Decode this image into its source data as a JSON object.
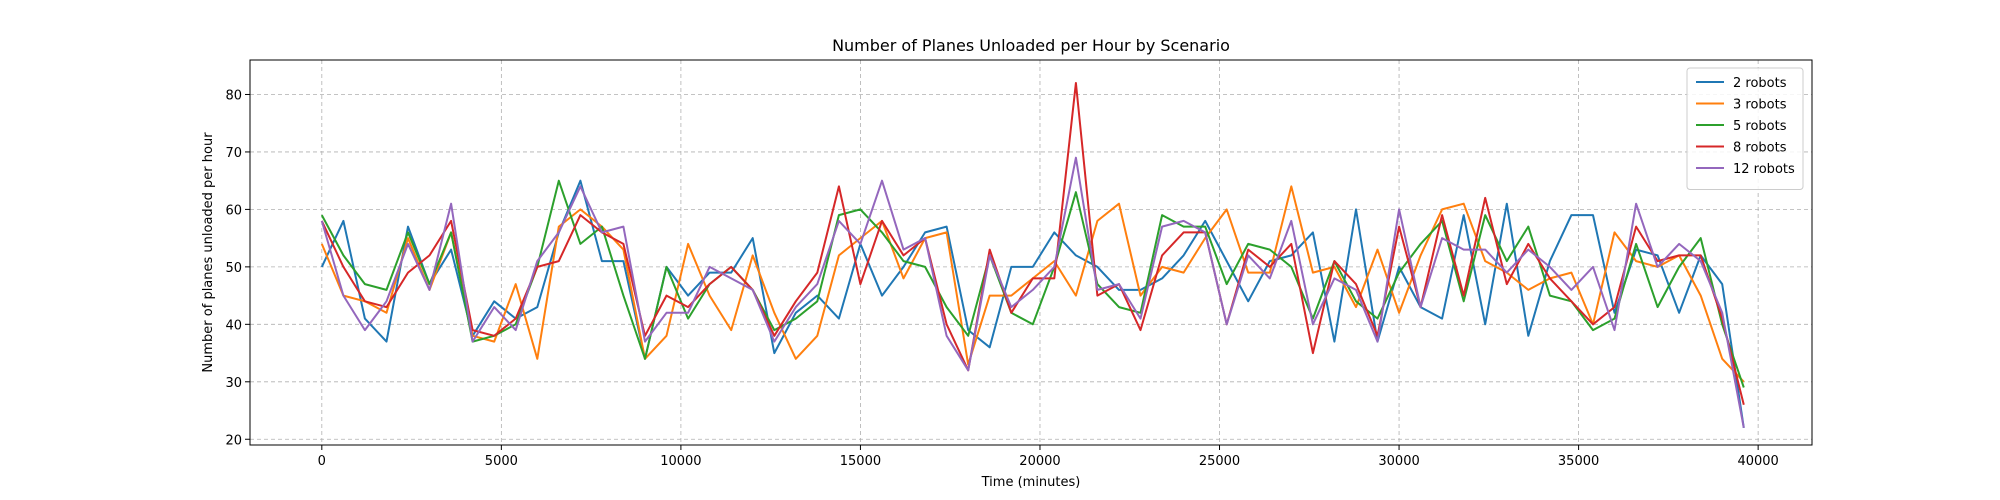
{
  "chart_data": {
    "type": "line",
    "title": "Number of Planes Unloaded per Hour by Scenario",
    "xlabel": "Time (minutes)",
    "ylabel": "Number of planes unloaded per hour",
    "xlim": [
      -2000,
      41500
    ],
    "ylim": [
      19,
      86
    ],
    "xticks": [
      0,
      5000,
      10000,
      15000,
      20000,
      25000,
      30000,
      35000,
      40000
    ],
    "yticks": [
      20,
      30,
      40,
      50,
      60,
      70,
      80
    ],
    "grid": true,
    "legend_position": "top-right",
    "x": [
      0,
      600,
      1200,
      1800,
      2400,
      3000,
      3600,
      4200,
      4800,
      5400,
      6000,
      6600,
      7200,
      7800,
      8400,
      9000,
      9600,
      10200,
      10800,
      11400,
      12000,
      12600,
      13200,
      13800,
      14400,
      15000,
      15600,
      16200,
      16800,
      17400,
      18000,
      18600,
      19200,
      19800,
      20400,
      21000,
      21600,
      22200,
      22800,
      23400,
      24000,
      24600,
      25200,
      25800,
      26400,
      27000,
      27600,
      28200,
      28800,
      29400,
      30000,
      30600,
      31200,
      31800,
      32400,
      33000,
      33600,
      34200,
      34800,
      35400,
      36000,
      36600,
      37200,
      37800,
      38400,
      39000,
      39600
    ],
    "series": [
      {
        "name": "2 robots",
        "color": "#1f77b4",
        "values": [
          50,
          58,
          41,
          37,
          57,
          47,
          53,
          38,
          44,
          41,
          43,
          56,
          65,
          51,
          51,
          34,
          50,
          45,
          49,
          49,
          55,
          35,
          42,
          45,
          41,
          54,
          45,
          50,
          56,
          57,
          39,
          36,
          50,
          50,
          56,
          52,
          50,
          46,
          46,
          48,
          52,
          58,
          51,
          44,
          51,
          52,
          56,
          37,
          60,
          37,
          50,
          43,
          41,
          59,
          40,
          61,
          38,
          51,
          59,
          59,
          42,
          53,
          52,
          42,
          52,
          47,
          22
        ]
      },
      {
        "name": "3 robots",
        "color": "#ff7f0e",
        "values": [
          54,
          45,
          44,
          42,
          55,
          46,
          56,
          38,
          37,
          47,
          34,
          57,
          60,
          57,
          53,
          34,
          38,
          54,
          45,
          39,
          52,
          42,
          34,
          38,
          52,
          55,
          58,
          48,
          55,
          56,
          33,
          45,
          45,
          48,
          51,
          45,
          58,
          61,
          45,
          50,
          49,
          55,
          60,
          49,
          49,
          64,
          49,
          50,
          43,
          53,
          42,
          52,
          60,
          61,
          51,
          49,
          46,
          48,
          49,
          40,
          56,
          51,
          50,
          52,
          45,
          34,
          30
        ]
      },
      {
        "name": "5 robots",
        "color": "#2ca02c",
        "values": [
          59,
          52,
          47,
          46,
          56,
          47,
          56,
          37,
          38,
          40,
          50,
          65,
          54,
          57,
          45,
          34,
          50,
          41,
          47,
          50,
          46,
          39,
          41,
          44,
          59,
          60,
          56,
          51,
          50,
          43,
          38,
          52,
          42,
          40,
          50,
          63,
          47,
          43,
          42,
          59,
          57,
          57,
          47,
          54,
          53,
          50,
          41,
          51,
          44,
          41,
          49,
          54,
          58,
          44,
          59,
          51,
          57,
          45,
          44,
          39,
          41,
          54,
          43,
          50,
          55,
          40,
          29
        ]
      },
      {
        "name": "8 robots",
        "color": "#d62728",
        "values": [
          58,
          50,
          44,
          43,
          49,
          52,
          58,
          39,
          38,
          41,
          50,
          51,
          59,
          56,
          54,
          38,
          45,
          43,
          47,
          50,
          46,
          38,
          44,
          49,
          64,
          47,
          58,
          52,
          55,
          40,
          32,
          53,
          42,
          48,
          48,
          82,
          45,
          47,
          39,
          52,
          56,
          56,
          40,
          53,
          50,
          54,
          35,
          51,
          47,
          38,
          57,
          43,
          59,
          45,
          62,
          47,
          54,
          48,
          44,
          40,
          43,
          57,
          51,
          52,
          52,
          41,
          26
        ]
      },
      {
        "name": "12 robots",
        "color": "#9467bd",
        "values": [
          58,
          45,
          39,
          44,
          54,
          46,
          61,
          37,
          43,
          39,
          51,
          56,
          64,
          56,
          57,
          37,
          42,
          42,
          50,
          48,
          46,
          37,
          43,
          47,
          58,
          54,
          65,
          53,
          55,
          38,
          32,
          52,
          43,
          46,
          50,
          69,
          46,
          47,
          41,
          57,
          58,
          56,
          40,
          52,
          48,
          58,
          40,
          48,
          46,
          37,
          60,
          43,
          55,
          53,
          53,
          49,
          53,
          50,
          46,
          50,
          39,
          61,
          50,
          54,
          51,
          42,
          22
        ]
      }
    ]
  }
}
